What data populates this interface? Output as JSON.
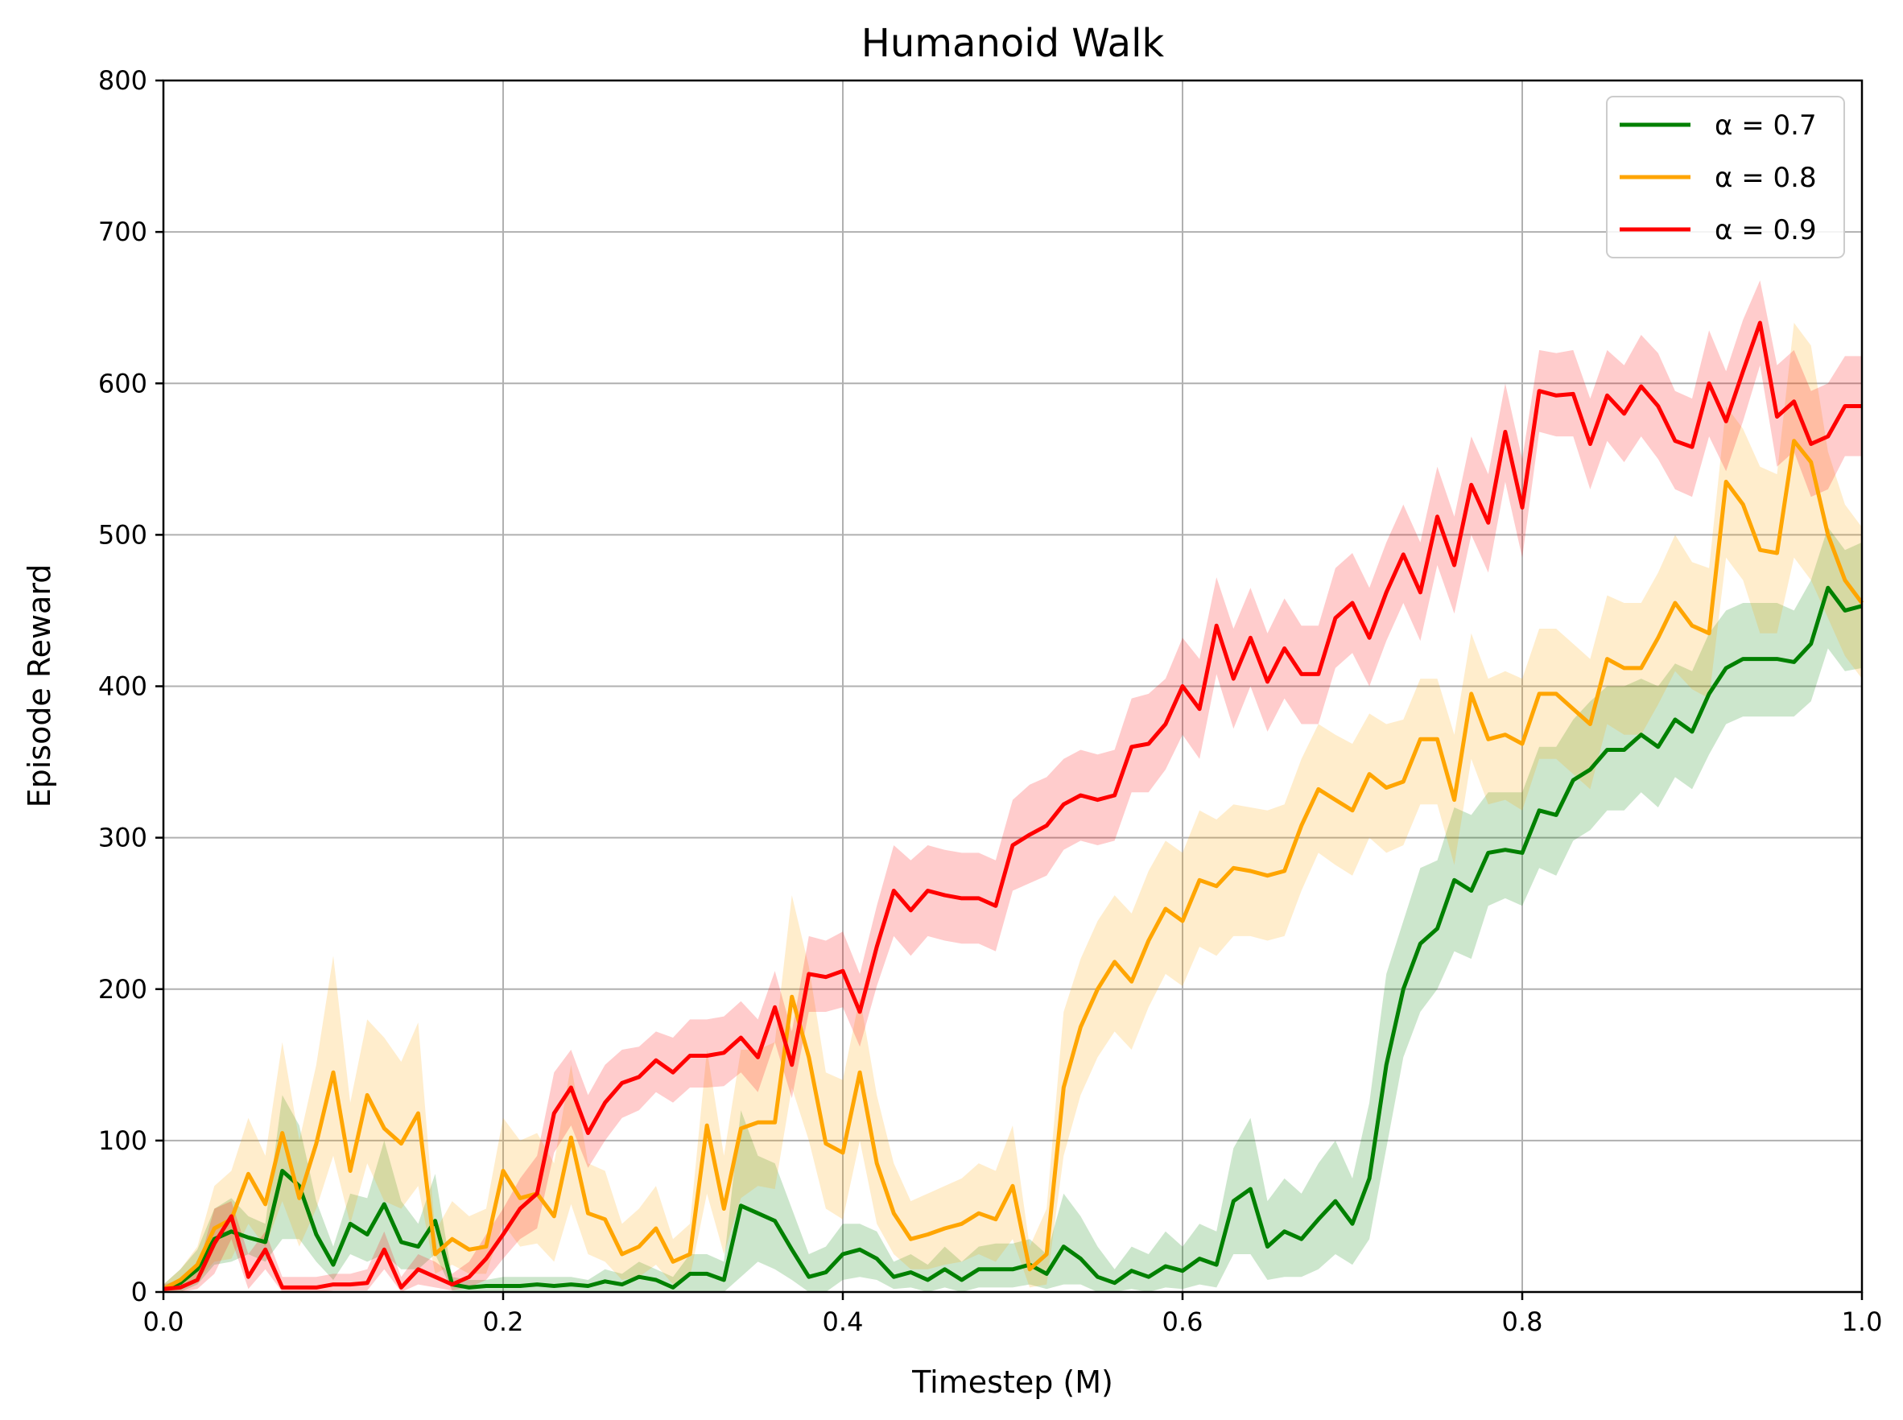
{
  "chart_data": {
    "type": "line",
    "title": "Humanoid Walk",
    "xlabel": "Timestep (M)",
    "ylabel": "Episode Reward",
    "xlim": [
      0,
      1
    ],
    "ylim": [
      0,
      800
    ],
    "xticks": [
      "0.0",
      "0.2",
      "0.4",
      "0.6",
      "0.8",
      "1.0"
    ],
    "yticks": [
      "0",
      "100",
      "200",
      "300",
      "400",
      "500",
      "600",
      "700",
      "800"
    ],
    "grid": true,
    "legend": {
      "position": "top-right"
    },
    "x": [
      0.0,
      0.01,
      0.02,
      0.03,
      0.04,
      0.05,
      0.06,
      0.07,
      0.08,
      0.09,
      0.1,
      0.11,
      0.12,
      0.13,
      0.14,
      0.15,
      0.16,
      0.17,
      0.18,
      0.19,
      0.2,
      0.21,
      0.22,
      0.23,
      0.24,
      0.25,
      0.26,
      0.27,
      0.28,
      0.29,
      0.3,
      0.31,
      0.32,
      0.33,
      0.34,
      0.35,
      0.36,
      0.37,
      0.38,
      0.39,
      0.4,
      0.41,
      0.42,
      0.43,
      0.44,
      0.45,
      0.46,
      0.47,
      0.48,
      0.49,
      0.5,
      0.51,
      0.52,
      0.53,
      0.54,
      0.55,
      0.56,
      0.57,
      0.58,
      0.59,
      0.6,
      0.61,
      0.62,
      0.63,
      0.64,
      0.65,
      0.66,
      0.67,
      0.68,
      0.69,
      0.7,
      0.71,
      0.72,
      0.73,
      0.74,
      0.75,
      0.76,
      0.77,
      0.78,
      0.79,
      0.8,
      0.81,
      0.82,
      0.83,
      0.84,
      0.85,
      0.86,
      0.87,
      0.88,
      0.89,
      0.9,
      0.91,
      0.92,
      0.93,
      0.94,
      0.95,
      0.96,
      0.97,
      0.98,
      0.99,
      1.0
    ],
    "series": [
      {
        "name": "α = 0.7",
        "color": "#008000",
        "values": [
          2,
          6,
          15,
          35,
          40,
          36,
          33,
          80,
          70,
          38,
          18,
          45,
          38,
          58,
          33,
          30,
          47,
          5,
          3,
          4,
          4,
          4,
          5,
          4,
          5,
          4,
          7,
          5,
          10,
          8,
          3,
          12,
          12,
          8,
          57,
          52,
          47,
          28,
          10,
          13,
          25,
          28,
          22,
          10,
          13,
          8,
          15,
          8,
          15,
          15,
          15,
          18,
          12,
          30,
          22,
          10,
          6,
          14,
          10,
          17,
          14,
          22,
          18,
          60,
          68,
          30,
          40,
          35,
          48,
          60,
          45,
          75,
          150,
          200,
          230,
          240,
          272,
          265,
          290,
          292,
          290,
          318,
          315,
          338,
          345,
          358,
          358,
          368,
          360,
          378,
          370,
          395,
          412,
          418,
          418,
          418,
          416,
          428,
          465,
          450,
          453
        ],
        "upper": [
          5,
          15,
          28,
          55,
          62,
          50,
          45,
          130,
          110,
          60,
          30,
          65,
          62,
          100,
          60,
          45,
          78,
          10,
          8,
          8,
          10,
          10,
          10,
          10,
          10,
          8,
          15,
          12,
          20,
          15,
          10,
          25,
          25,
          20,
          120,
          90,
          85,
          55,
          25,
          30,
          45,
          45,
          40,
          20,
          25,
          18,
          30,
          20,
          30,
          32,
          32,
          35,
          25,
          65,
          50,
          30,
          15,
          30,
          25,
          40,
          30,
          45,
          40,
          95,
          115,
          60,
          75,
          65,
          85,
          100,
          75,
          125,
          210,
          245,
          280,
          285,
          320,
          315,
          330,
          330,
          330,
          360,
          360,
          378,
          390,
          400,
          400,
          405,
          400,
          415,
          410,
          435,
          450,
          455,
          455,
          455,
          450,
          470,
          505,
          490,
          495
        ],
        "lower": [
          0,
          0,
          5,
          18,
          20,
          25,
          20,
          35,
          35,
          20,
          8,
          25,
          20,
          25,
          15,
          15,
          25,
          1,
          0,
          0,
          0,
          0,
          0,
          0,
          0,
          0,
          0,
          0,
          0,
          0,
          0,
          0,
          0,
          0,
          10,
          20,
          15,
          8,
          0,
          0,
          8,
          10,
          8,
          2,
          3,
          0,
          3,
          0,
          3,
          3,
          3,
          5,
          2,
          5,
          5,
          0,
          0,
          2,
          0,
          3,
          2,
          5,
          3,
          25,
          25,
          8,
          10,
          10,
          15,
          25,
          18,
          35,
          95,
          155,
          185,
          200,
          225,
          220,
          255,
          260,
          255,
          280,
          275,
          298,
          305,
          318,
          318,
          330,
          320,
          340,
          332,
          355,
          375,
          380,
          380,
          380,
          380,
          390,
          425,
          410,
          412
        ]
      },
      {
        "name": "α = 0.8",
        "color": "#ffa500",
        "values": [
          2,
          8,
          18,
          42,
          48,
          78,
          58,
          105,
          62,
          98,
          145,
          80,
          130,
          108,
          98,
          118,
          25,
          35,
          28,
          30,
          80,
          62,
          65,
          50,
          102,
          52,
          48,
          25,
          30,
          42,
          20,
          25,
          110,
          55,
          108,
          112,
          112,
          195,
          155,
          98,
          92,
          145,
          85,
          52,
          35,
          38,
          42,
          45,
          52,
          48,
          70,
          15,
          25,
          135,
          175,
          200,
          218,
          205,
          232,
          253,
          245,
          272,
          268,
          280,
          278,
          275,
          278,
          308,
          332,
          325,
          318,
          342,
          333,
          337,
          365,
          365,
          325,
          395,
          365,
          368,
          362,
          395,
          395,
          385,
          375,
          418,
          412,
          412,
          432,
          455,
          440,
          435,
          535,
          520,
          490,
          488,
          562,
          548,
          500,
          470,
          455
        ],
        "upper": [
          5,
          15,
          30,
          70,
          80,
          115,
          90,
          165,
          100,
          150,
          222,
          125,
          180,
          168,
          152,
          178,
          40,
          60,
          50,
          55,
          115,
          100,
          105,
          85,
          150,
          85,
          80,
          45,
          55,
          70,
          35,
          45,
          160,
          90,
          160,
          160,
          165,
          262,
          215,
          145,
          140,
          195,
          130,
          85,
          60,
          65,
          70,
          75,
          85,
          80,
          110,
          30,
          55,
          185,
          220,
          245,
          262,
          250,
          278,
          298,
          290,
          318,
          312,
          322,
          320,
          318,
          322,
          352,
          375,
          368,
          362,
          382,
          375,
          378,
          405,
          405,
          368,
          435,
          405,
          410,
          405,
          438,
          438,
          428,
          418,
          460,
          455,
          455,
          475,
          500,
          482,
          478,
          585,
          570,
          545,
          540,
          640,
          625,
          555,
          520,
          505
        ],
        "lower": [
          0,
          2,
          8,
          20,
          22,
          45,
          30,
          60,
          30,
          55,
          90,
          45,
          85,
          60,
          55,
          70,
          12,
          18,
          12,
          12,
          45,
          30,
          32,
          20,
          58,
          25,
          20,
          8,
          10,
          18,
          5,
          10,
          65,
          25,
          62,
          70,
          68,
          135,
          100,
          55,
          48,
          100,
          45,
          25,
          15,
          15,
          18,
          20,
          25,
          20,
          35,
          3,
          5,
          90,
          130,
          155,
          172,
          160,
          188,
          210,
          202,
          228,
          222,
          235,
          235,
          232,
          235,
          265,
          290,
          282,
          275,
          300,
          290,
          295,
          322,
          322,
          282,
          352,
          322,
          325,
          318,
          352,
          352,
          342,
          332,
          375,
          368,
          368,
          388,
          410,
          398,
          392,
          485,
          470,
          435,
          435,
          485,
          470,
          445,
          420,
          405
        ]
      },
      {
        "name": "α = 0.9",
        "color": "#ff0000",
        "values": [
          2,
          3,
          8,
          32,
          50,
          10,
          28,
          3,
          3,
          3,
          5,
          5,
          6,
          28,
          3,
          15,
          10,
          5,
          10,
          22,
          38,
          55,
          65,
          118,
          135,
          105,
          125,
          138,
          142,
          153,
          145,
          156,
          156,
          158,
          168,
          155,
          188,
          150,
          210,
          208,
          212,
          185,
          228,
          265,
          252,
          265,
          262,
          260,
          260,
          255,
          295,
          302,
          308,
          322,
          328,
          325,
          328,
          360,
          362,
          375,
          400,
          385,
          440,
          405,
          432,
          403,
          425,
          408,
          408,
          445,
          455,
          432,
          462,
          487,
          462,
          512,
          480,
          533,
          508,
          568,
          518,
          595,
          592,
          593,
          560,
          592,
          580,
          598,
          585,
          562,
          558,
          600,
          575,
          608,
          640,
          578,
          588,
          560,
          565,
          585,
          585
        ],
        "upper": [
          5,
          8,
          15,
          55,
          60,
          25,
          40,
          10,
          10,
          10,
          12,
          12,
          15,
          40,
          10,
          25,
          20,
          12,
          20,
          38,
          55,
          75,
          90,
          145,
          160,
          130,
          150,
          160,
          162,
          172,
          168,
          180,
          180,
          182,
          192,
          180,
          212,
          172,
          235,
          232,
          238,
          210,
          255,
          295,
          285,
          295,
          292,
          290,
          290,
          285,
          325,
          335,
          340,
          352,
          358,
          355,
          358,
          392,
          395,
          405,
          432,
          418,
          472,
          438,
          465,
          435,
          458,
          440,
          440,
          478,
          488,
          465,
          495,
          520,
          495,
          545,
          512,
          565,
          540,
          600,
          550,
          622,
          620,
          622,
          590,
          622,
          612,
          632,
          620,
          595,
          590,
          635,
          608,
          642,
          668,
          612,
          622,
          595,
          600,
          618,
          618
        ],
        "lower": [
          0,
          0,
          2,
          12,
          35,
          2,
          15,
          0,
          0,
          0,
          1,
          1,
          1,
          15,
          0,
          5,
          3,
          1,
          3,
          8,
          22,
          35,
          42,
          92,
          110,
          82,
          100,
          115,
          120,
          132,
          125,
          135,
          135,
          136,
          145,
          132,
          165,
          128,
          185,
          185,
          188,
          162,
          202,
          235,
          222,
          235,
          232,
          230,
          230,
          225,
          265,
          270,
          275,
          292,
          298,
          295,
          298,
          330,
          330,
          345,
          368,
          352,
          408,
          372,
          400,
          370,
          392,
          375,
          375,
          412,
          422,
          400,
          430,
          455,
          430,
          480,
          448,
          500,
          475,
          535,
          485,
          568,
          565,
          565,
          530,
          562,
          548,
          565,
          550,
          530,
          525,
          565,
          542,
          575,
          612,
          545,
          555,
          525,
          530,
          552,
          552
        ]
      }
    ]
  }
}
